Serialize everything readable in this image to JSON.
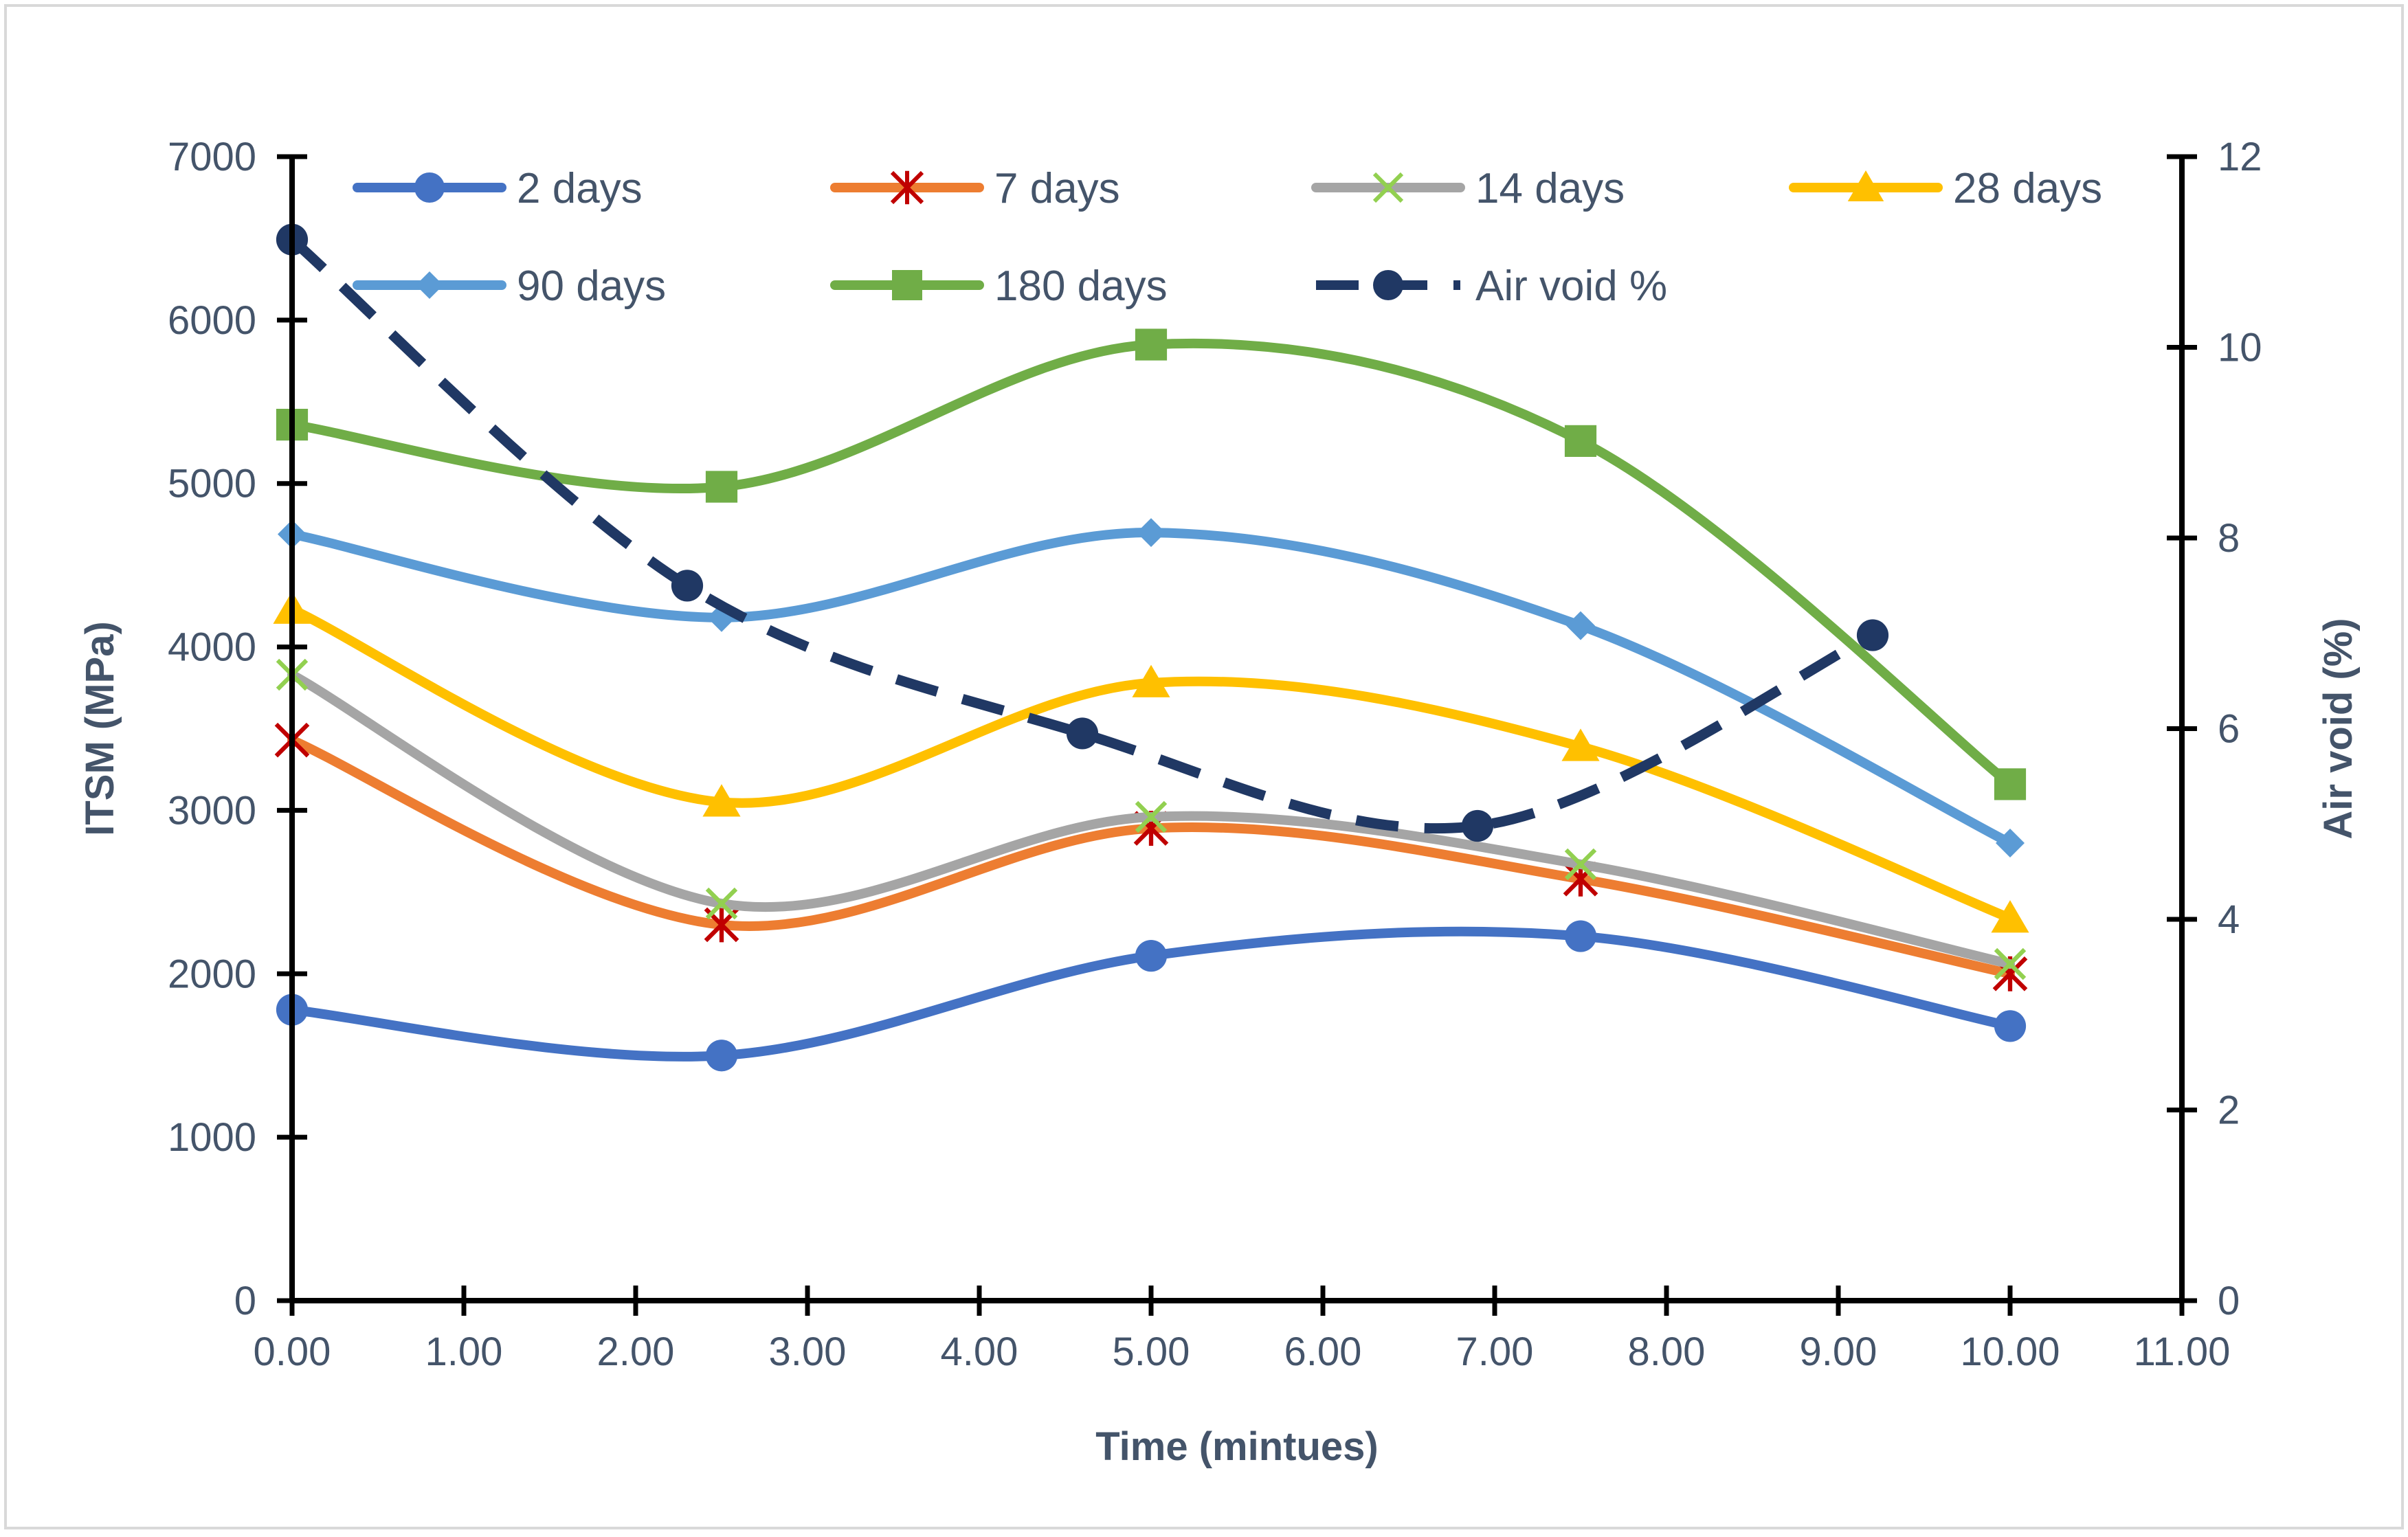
{
  "chart_data": {
    "type": "line",
    "title": "",
    "xlabel": "Time (mintues)",
    "ylabel": "ITSM (MPa)",
    "y2label": "Air void (%)",
    "xlim": [
      0,
      11
    ],
    "ylim": [
      0,
      7000
    ],
    "y2lim": [
      0,
      12
    ],
    "x_ticks": [
      "0.00",
      "1.00",
      "2.00",
      "3.00",
      "4.00",
      "5.00",
      "6.00",
      "7.00",
      "8.00",
      "9.00",
      "10.00",
      "11.00"
    ],
    "y_ticks": [
      "0",
      "1000",
      "2000",
      "3000",
      "4000",
      "5000",
      "6000",
      "7000"
    ],
    "y2_ticks": [
      "0",
      "2",
      "4",
      "6",
      "8",
      "10",
      "12"
    ],
    "legend_position": "top",
    "grid": false,
    "series": [
      {
        "name": "2 days",
        "axis": "left",
        "color": "#4472c4",
        "marker": "circle",
        "dash": false,
        "x": [
          0,
          2.5,
          5,
          7.5,
          10
        ],
        "values": [
          1780,
          1500,
          2110,
          2230,
          1680
        ]
      },
      {
        "name": "7 days",
        "axis": "left",
        "color": "#ed7d31",
        "marker": "asterisk",
        "marker_color": "#c00000",
        "dash": false,
        "x": [
          0,
          2.5,
          5,
          7.5,
          10
        ],
        "values": [
          3430,
          2300,
          2890,
          2580,
          2000
        ]
      },
      {
        "name": "14 days",
        "axis": "left",
        "color": "#a5a5a5",
        "marker": "x",
        "marker_color": "#92d050",
        "dash": false,
        "x": [
          0,
          2.5,
          5,
          7.5,
          10
        ],
        "values": [
          3830,
          2430,
          2960,
          2670,
          2060
        ]
      },
      {
        "name": "28 days",
        "axis": "left",
        "color": "#ffc000",
        "marker": "triangle",
        "dash": false,
        "x": [
          0,
          2.5,
          5,
          7.5,
          10
        ],
        "values": [
          4230,
          3050,
          3780,
          3390,
          2340
        ]
      },
      {
        "name": "90 days",
        "axis": "left",
        "color": "#5b9bd5",
        "marker": "diamond",
        "dash": false,
        "x": [
          0,
          2.5,
          5,
          7.5,
          10
        ],
        "values": [
          4690,
          4180,
          4700,
          4130,
          2800
        ]
      },
      {
        "name": "180 days",
        "axis": "left",
        "color": "#70ad47",
        "marker": "square",
        "dash": false,
        "x": [
          0,
          2.5,
          5,
          7.5,
          10
        ],
        "values": [
          5360,
          4980,
          5850,
          5260,
          3160
        ]
      },
      {
        "name": "Air void %",
        "axis": "right",
        "color": "#203864",
        "marker": "circle",
        "dash": true,
        "x": [
          0,
          2.3,
          4.6,
          6.9,
          9.2
        ],
        "values": [
          11.13,
          7.5,
          5.95,
          4.98,
          6.98
        ]
      }
    ]
  }
}
